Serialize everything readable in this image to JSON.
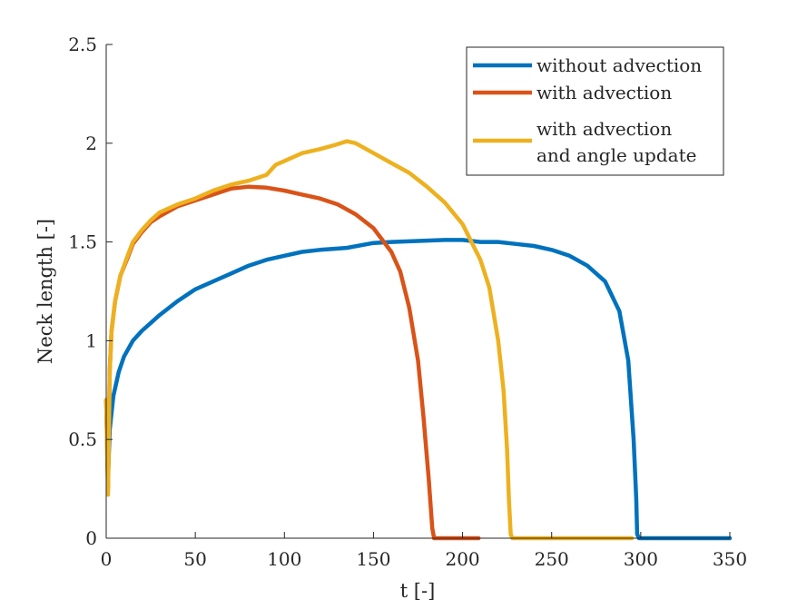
{
  "chart_data": {
    "type": "line",
    "title": "",
    "xlabel": "t [-]",
    "ylabel": "Neck length [-]",
    "xlim": [
      0,
      350
    ],
    "ylim": [
      0,
      2.5
    ],
    "xticks": [
      0,
      50,
      100,
      150,
      200,
      250,
      300,
      350
    ],
    "yticks": [
      0,
      0.5,
      1,
      1.5,
      2,
      2.5
    ],
    "xtick_labels": [
      "0",
      "50",
      "100",
      "150",
      "200",
      "250",
      "300",
      "350"
    ],
    "ytick_labels": [
      "0",
      "0.5",
      "1",
      "1.5",
      "2",
      "2.5"
    ],
    "grid": false,
    "legend_position": "top-right",
    "series": [
      {
        "name": "without advection",
        "color": "#0072BD",
        "points": [
          [
            0,
            0.7
          ],
          [
            1,
            0.32
          ],
          [
            2,
            0.55
          ],
          [
            4,
            0.72
          ],
          [
            7,
            0.84
          ],
          [
            10,
            0.92
          ],
          [
            15,
            1.0
          ],
          [
            20,
            1.05
          ],
          [
            25,
            1.09
          ],
          [
            30,
            1.13
          ],
          [
            40,
            1.2
          ],
          [
            50,
            1.26
          ],
          [
            60,
            1.3
          ],
          [
            70,
            1.34
          ],
          [
            80,
            1.38
          ],
          [
            90,
            1.41
          ],
          [
            100,
            1.43
          ],
          [
            110,
            1.45
          ],
          [
            120,
            1.46
          ],
          [
            135,
            1.47
          ],
          [
            150,
            1.495
          ],
          [
            160,
            1.5
          ],
          [
            175,
            1.505
          ],
          [
            190,
            1.51
          ],
          [
            200,
            1.51
          ],
          [
            210,
            1.5
          ],
          [
            220,
            1.5
          ],
          [
            230,
            1.49
          ],
          [
            240,
            1.48
          ],
          [
            250,
            1.46
          ],
          [
            260,
            1.43
          ],
          [
            270,
            1.38
          ],
          [
            280,
            1.3
          ],
          [
            288,
            1.15
          ],
          [
            293,
            0.9
          ],
          [
            296,
            0.5
          ],
          [
            297.5,
            0.2
          ],
          [
            298,
            0.02
          ],
          [
            299,
            0
          ],
          [
            310,
            0
          ],
          [
            350,
            0
          ]
        ]
      },
      {
        "name": "with advection",
        "color": "#D95319",
        "points": [
          [
            0,
            0.7
          ],
          [
            1,
            0.25
          ],
          [
            2,
            0.85
          ],
          [
            3,
            1.05
          ],
          [
            5,
            1.2
          ],
          [
            8,
            1.33
          ],
          [
            12,
            1.42
          ],
          [
            15,
            1.49
          ],
          [
            20,
            1.55
          ],
          [
            25,
            1.6
          ],
          [
            30,
            1.63
          ],
          [
            40,
            1.68
          ],
          [
            50,
            1.71
          ],
          [
            60,
            1.74
          ],
          [
            70,
            1.77
          ],
          [
            80,
            1.78
          ],
          [
            90,
            1.775
          ],
          [
            100,
            1.76
          ],
          [
            110,
            1.74
          ],
          [
            120,
            1.72
          ],
          [
            130,
            1.69
          ],
          [
            140,
            1.64
          ],
          [
            150,
            1.57
          ],
          [
            160,
            1.45
          ],
          [
            165,
            1.35
          ],
          [
            170,
            1.17
          ],
          [
            175,
            0.9
          ],
          [
            178,
            0.62
          ],
          [
            181,
            0.3
          ],
          [
            183,
            0.05
          ],
          [
            184,
            0
          ],
          [
            209,
            0
          ]
        ]
      },
      {
        "name": "with advection\nand angle update",
        "color": "#EDB120",
        "points": [
          [
            0,
            0.7
          ],
          [
            1,
            0.22
          ],
          [
            2,
            0.85
          ],
          [
            3,
            1.05
          ],
          [
            5,
            1.2
          ],
          [
            8,
            1.33
          ],
          [
            12,
            1.43
          ],
          [
            15,
            1.5
          ],
          [
            20,
            1.56
          ],
          [
            25,
            1.61
          ],
          [
            30,
            1.65
          ],
          [
            40,
            1.69
          ],
          [
            50,
            1.72
          ],
          [
            60,
            1.76
          ],
          [
            70,
            1.79
          ],
          [
            80,
            1.81
          ],
          [
            90,
            1.84
          ],
          [
            95,
            1.89
          ],
          [
            100,
            1.91
          ],
          [
            110,
            1.95
          ],
          [
            120,
            1.97
          ],
          [
            128,
            1.99
          ],
          [
            135,
            2.01
          ],
          [
            140,
            2.0
          ],
          [
            150,
            1.95
          ],
          [
            160,
            1.9
          ],
          [
            170,
            1.85
          ],
          [
            180,
            1.78
          ],
          [
            190,
            1.7
          ],
          [
            200,
            1.59
          ],
          [
            210,
            1.41
          ],
          [
            215,
            1.27
          ],
          [
            220,
            1.0
          ],
          [
            223,
            0.75
          ],
          [
            225,
            0.45
          ],
          [
            226,
            0.2
          ],
          [
            227,
            0.02
          ],
          [
            228,
            0
          ],
          [
            295,
            0
          ]
        ]
      }
    ]
  }
}
